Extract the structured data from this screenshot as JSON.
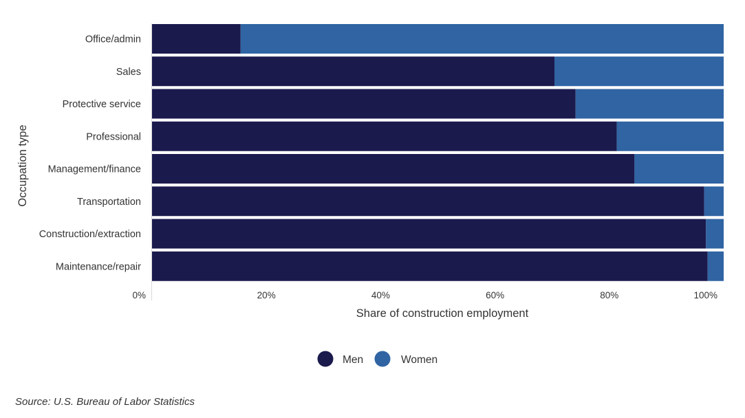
{
  "chart_data": {
    "type": "bar",
    "orientation": "horizontal",
    "stacked": true,
    "categories": [
      "Office/admin",
      "Sales",
      "Protective service",
      "Professional",
      "Management/finance",
      "Transportation",
      "Construction/extraction",
      "Maintenance/repair"
    ],
    "series": [
      {
        "name": "Men",
        "color": "#1b1a4d",
        "values": [
          15.5,
          70.4,
          74.1,
          81.3,
          84.4,
          96.6,
          96.9,
          97.2
        ]
      },
      {
        "name": "Women",
        "color": "#3064a3",
        "values": [
          84.5,
          29.6,
          25.9,
          18.7,
          15.6,
          3.4,
          3.1,
          2.8
        ]
      }
    ],
    "xlim": [
      0,
      100
    ],
    "xticks": [
      "0%",
      "20%",
      "40%",
      "60%",
      "80%",
      "100%"
    ],
    "xlabel": "Share of construction employment",
    "ylabel": "Occupation type",
    "legend_position": "bottom-center",
    "grid": false
  },
  "legend": {
    "items": [
      {
        "label": "Men",
        "color": "#1b1a4d"
      },
      {
        "label": "Women",
        "color": "#3064a3"
      }
    ]
  },
  "footer": {
    "source": "Source: U.S. Bureau of Labor Statistics"
  }
}
